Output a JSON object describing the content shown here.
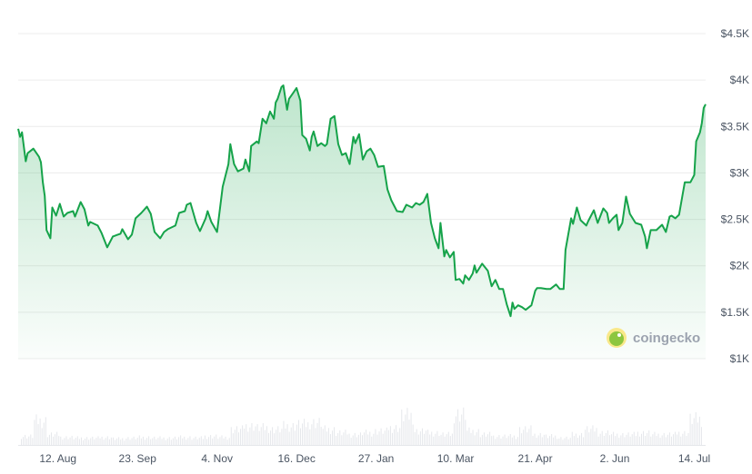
{
  "chart_data": {
    "type": "area",
    "title": "",
    "xlabel": "",
    "ylabel": "",
    "ylim": [
      1000,
      4500
    ],
    "y_ticks": [
      "$1K",
      "$1.5K",
      "$2K",
      "$2.5K",
      "$3K",
      "$3.5K",
      "$4K",
      "$4.5K"
    ],
    "y_tick_values": [
      1000,
      1500,
      2000,
      2500,
      3000,
      3500,
      4000,
      4500
    ],
    "x_ticks": [
      "12. Aug",
      "23. Sep",
      "4. Nov",
      "16. Dec",
      "27. Jan",
      "10. Mar",
      "21. Apr",
      "2. Jun",
      "14. Jul"
    ],
    "x_tick_dates": [
      "2024-08-12",
      "2024-09-23",
      "2024-11-04",
      "2024-12-16",
      "2025-01-27",
      "2025-03-10",
      "2025-04-21",
      "2025-06-02",
      "2025-07-14"
    ],
    "xlim": [
      "2024-07-22",
      "2025-07-20"
    ],
    "grid": true,
    "y_axis_side": "right",
    "line_color": "#16a34a",
    "fill_color": "#16a34a",
    "series": [
      {
        "points": [
          [
            "2024-07-22",
            3475
          ],
          [
            "2024-07-23",
            3388
          ],
          [
            "2024-07-24",
            3437
          ],
          [
            "2024-07-26",
            3125
          ],
          [
            "2024-07-27",
            3212
          ],
          [
            "2024-07-30",
            3261
          ],
          [
            "2024-08-02",
            3173
          ],
          [
            "2024-08-03",
            3115
          ],
          [
            "2024-08-04",
            2900
          ],
          [
            "2024-08-05",
            2754
          ],
          [
            "2024-08-06",
            2384
          ],
          [
            "2024-08-08",
            2296
          ],
          [
            "2024-08-09",
            2628
          ],
          [
            "2024-08-11",
            2540
          ],
          [
            "2024-08-13",
            2667
          ],
          [
            "2024-08-15",
            2530
          ],
          [
            "2024-08-17",
            2569
          ],
          [
            "2024-08-20",
            2589
          ],
          [
            "2024-08-21",
            2530
          ],
          [
            "2024-08-24",
            2686
          ],
          [
            "2024-08-26",
            2608
          ],
          [
            "2024-08-28",
            2433
          ],
          [
            "2024-08-29",
            2472
          ],
          [
            "2024-09-02",
            2433
          ],
          [
            "2024-09-04",
            2355
          ],
          [
            "2024-09-07",
            2199
          ],
          [
            "2024-09-10",
            2316
          ],
          [
            "2024-09-14",
            2345
          ],
          [
            "2024-09-15",
            2394
          ],
          [
            "2024-09-18",
            2286
          ],
          [
            "2024-09-20",
            2335
          ],
          [
            "2024-09-22",
            2511
          ],
          [
            "2024-09-25",
            2569
          ],
          [
            "2024-09-28",
            2637
          ],
          [
            "2024-09-30",
            2559
          ],
          [
            "2024-10-02",
            2364
          ],
          [
            "2024-10-05",
            2296
          ],
          [
            "2024-10-07",
            2364
          ],
          [
            "2024-10-09",
            2394
          ],
          [
            "2024-10-13",
            2433
          ],
          [
            "2024-10-15",
            2569
          ],
          [
            "2024-10-18",
            2589
          ],
          [
            "2024-10-19",
            2657
          ],
          [
            "2024-10-21",
            2676
          ],
          [
            "2024-10-24",
            2462
          ],
          [
            "2024-10-26",
            2374
          ],
          [
            "2024-10-29",
            2511
          ],
          [
            "2024-10-30",
            2589
          ],
          [
            "2024-11-01",
            2472
          ],
          [
            "2024-11-04",
            2364
          ],
          [
            "2024-11-07",
            2852
          ],
          [
            "2024-11-10",
            3095
          ],
          [
            "2024-11-11",
            3310
          ],
          [
            "2024-11-13",
            3095
          ],
          [
            "2024-11-15",
            3017
          ],
          [
            "2024-11-18",
            3047
          ],
          [
            "2024-11-19",
            3144
          ],
          [
            "2024-11-21",
            3017
          ],
          [
            "2024-11-22",
            3290
          ],
          [
            "2024-11-25",
            3339
          ],
          [
            "2024-11-26",
            3320
          ],
          [
            "2024-11-28",
            3583
          ],
          [
            "2024-11-30",
            3534
          ],
          [
            "2024-12-02",
            3661
          ],
          [
            "2024-12-04",
            3583
          ],
          [
            "2024-12-05",
            3758
          ],
          [
            "2024-12-06",
            3797
          ],
          [
            "2024-12-08",
            3924
          ],
          [
            "2024-12-09",
            3943
          ],
          [
            "2024-12-11",
            3680
          ],
          [
            "2024-12-12",
            3797
          ],
          [
            "2024-12-14",
            3856
          ],
          [
            "2024-12-16",
            3914
          ],
          [
            "2024-12-18",
            3778
          ],
          [
            "2024-12-19",
            3407
          ],
          [
            "2024-12-21",
            3368
          ],
          [
            "2024-12-23",
            3242
          ],
          [
            "2024-12-24",
            3388
          ],
          [
            "2024-12-25",
            3446
          ],
          [
            "2024-12-27",
            3290
          ],
          [
            "2024-12-29",
            3320
          ],
          [
            "2024-12-31",
            3290
          ],
          [
            "2025-01-01",
            3310
          ],
          [
            "2025-01-03",
            3583
          ],
          [
            "2025-01-05",
            3612
          ],
          [
            "2025-01-07",
            3310
          ],
          [
            "2025-01-09",
            3193
          ],
          [
            "2025-01-11",
            3212
          ],
          [
            "2025-01-13",
            3095
          ],
          [
            "2025-01-15",
            3388
          ],
          [
            "2025-01-16",
            3320
          ],
          [
            "2025-01-18",
            3417
          ],
          [
            "2025-01-20",
            3144
          ],
          [
            "2025-01-22",
            3232
          ],
          [
            "2025-01-24",
            3261
          ],
          [
            "2025-01-26",
            3193
          ],
          [
            "2025-01-28",
            3066
          ],
          [
            "2025-01-31",
            3076
          ],
          [
            "2025-02-02",
            2822
          ],
          [
            "2025-02-04",
            2706
          ],
          [
            "2025-02-07",
            2589
          ],
          [
            "2025-02-10",
            2579
          ],
          [
            "2025-02-12",
            2657
          ],
          [
            "2025-02-15",
            2628
          ],
          [
            "2025-02-17",
            2676
          ],
          [
            "2025-02-19",
            2657
          ],
          [
            "2025-02-21",
            2686
          ],
          [
            "2025-02-23",
            2774
          ],
          [
            "2025-02-25",
            2462
          ],
          [
            "2025-02-27",
            2296
          ],
          [
            "2025-03-01",
            2189
          ],
          [
            "2025-03-02",
            2462
          ],
          [
            "2025-03-04",
            2101
          ],
          [
            "2025-03-05",
            2170
          ],
          [
            "2025-03-07",
            2091
          ],
          [
            "2025-03-09",
            2150
          ],
          [
            "2025-03-10",
            1848
          ],
          [
            "2025-03-12",
            1858
          ],
          [
            "2025-03-14",
            1809
          ],
          [
            "2025-03-15",
            1897
          ],
          [
            "2025-03-17",
            1848
          ],
          [
            "2025-03-19",
            1916
          ],
          [
            "2025-03-20",
            2004
          ],
          [
            "2025-03-21",
            1926
          ],
          [
            "2025-03-24",
            2023
          ],
          [
            "2025-03-27",
            1945
          ],
          [
            "2025-03-29",
            1780
          ],
          [
            "2025-03-31",
            1848
          ],
          [
            "2025-04-02",
            1750
          ],
          [
            "2025-04-04",
            1750
          ],
          [
            "2025-04-06",
            1585
          ],
          [
            "2025-04-08",
            1458
          ],
          [
            "2025-04-09",
            1604
          ],
          [
            "2025-04-10",
            1536
          ],
          [
            "2025-04-12",
            1575
          ],
          [
            "2025-04-14",
            1555
          ],
          [
            "2025-04-16",
            1526
          ],
          [
            "2025-04-19",
            1575
          ],
          [
            "2025-04-21",
            1731
          ],
          [
            "2025-04-22",
            1760
          ],
          [
            "2025-04-24",
            1760
          ],
          [
            "2025-04-27",
            1750
          ],
          [
            "2025-04-29",
            1750
          ],
          [
            "2025-05-02",
            1799
          ],
          [
            "2025-05-04",
            1750
          ],
          [
            "2025-05-06",
            1750
          ],
          [
            "2025-05-07",
            2170
          ],
          [
            "2025-05-10",
            2511
          ],
          [
            "2025-05-11",
            2452
          ],
          [
            "2025-05-13",
            2628
          ],
          [
            "2025-05-15",
            2491
          ],
          [
            "2025-05-18",
            2433
          ],
          [
            "2025-05-19",
            2481
          ],
          [
            "2025-05-22",
            2598
          ],
          [
            "2025-05-24",
            2462
          ],
          [
            "2025-05-27",
            2618
          ],
          [
            "2025-05-29",
            2569
          ],
          [
            "2025-05-30",
            2462
          ],
          [
            "2025-06-01",
            2511
          ],
          [
            "2025-06-03",
            2550
          ],
          [
            "2025-06-04",
            2384
          ],
          [
            "2025-06-06",
            2462
          ],
          [
            "2025-06-08",
            2745
          ],
          [
            "2025-06-10",
            2559
          ],
          [
            "2025-06-13",
            2462
          ],
          [
            "2025-06-16",
            2442
          ],
          [
            "2025-06-18",
            2316
          ],
          [
            "2025-06-19",
            2189
          ],
          [
            "2025-06-21",
            2384
          ],
          [
            "2025-06-24",
            2384
          ],
          [
            "2025-06-27",
            2442
          ],
          [
            "2025-06-29",
            2364
          ],
          [
            "2025-07-01",
            2530
          ],
          [
            "2025-07-02",
            2540
          ],
          [
            "2025-07-04",
            2511
          ],
          [
            "2025-07-06",
            2550
          ],
          [
            "2025-07-08",
            2784
          ],
          [
            "2025-07-09",
            2900
          ],
          [
            "2025-07-12",
            2900
          ],
          [
            "2025-07-14",
            2978
          ],
          [
            "2025-07-15",
            3339
          ],
          [
            "2025-07-17",
            3437
          ],
          [
            "2025-07-18",
            3534
          ],
          [
            "2025-07-19",
            3700
          ],
          [
            "2025-07-20",
            3739
          ]
        ]
      }
    ],
    "volume_relative": [
      0.25,
      0.7,
      0.3,
      0.22,
      0.2,
      0.2,
      0.22,
      0.18,
      0.2,
      0.22,
      0.2,
      0.2,
      0.22,
      0.2,
      0.25,
      0.22,
      0.45,
      0.55,
      0.5,
      0.45,
      0.55,
      0.6,
      0.65,
      0.45,
      0.35,
      0.3,
      0.35,
      0.4,
      0.5,
      0.85,
      0.4,
      0.35,
      0.3,
      0.9,
      0.4,
      0.3,
      0.25,
      0.25,
      0.45,
      0.3,
      0.25,
      0.2,
      0.3,
      0.45,
      0.35,
      0.3,
      0.3,
      0.35,
      0.3,
      0.3,
      0.35,
      0.75
    ],
    "volume_color": "#e5e7eb"
  },
  "watermark": {
    "text": "coingecko",
    "logo_color": "#8dc63f",
    "logo_ring": "#f9e88a"
  }
}
